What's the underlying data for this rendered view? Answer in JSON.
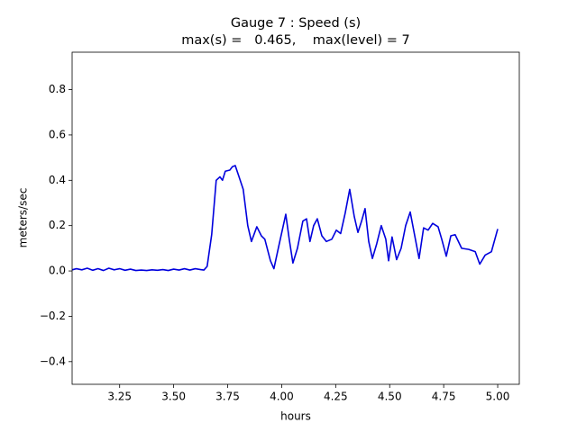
{
  "chart_data": {
    "type": "line",
    "title": "Gauge 7 : Speed (s)",
    "subtitle": "max(s) =   0.465,    max(level) = 7",
    "xlabel": "hours",
    "ylabel": "meters/sec",
    "color": "#0000dd",
    "x": [
      3.03,
      3.05,
      3.075,
      3.1,
      3.125,
      3.15,
      3.175,
      3.2,
      3.225,
      3.25,
      3.275,
      3.3,
      3.325,
      3.35,
      3.375,
      3.4,
      3.425,
      3.45,
      3.475,
      3.5,
      3.525,
      3.55,
      3.575,
      3.6,
      3.625,
      3.64,
      3.655,
      3.676,
      3.697,
      3.714,
      3.726,
      3.739,
      3.76,
      3.772,
      3.785,
      3.801,
      3.822,
      3.843,
      3.86,
      3.885,
      3.906,
      3.922,
      3.948,
      3.964,
      3.989,
      4.019,
      4.035,
      4.052,
      4.073,
      4.098,
      4.115,
      4.131,
      4.148,
      4.165,
      4.186,
      4.207,
      4.232,
      4.253,
      4.273,
      4.294,
      4.315,
      4.336,
      4.353,
      4.37,
      4.386,
      4.403,
      4.42,
      4.44,
      4.461,
      4.482,
      4.495,
      4.511,
      4.532,
      4.553,
      4.574,
      4.595,
      4.616,
      4.636,
      4.657,
      4.678,
      4.699,
      4.724,
      4.741,
      4.762,
      4.783,
      4.803,
      4.833,
      4.866,
      4.896,
      4.917,
      4.942,
      4.971,
      5.0
    ],
    "values": [
      0.005,
      0.01,
      0.005,
      0.012,
      0.003,
      0.01,
      0.002,
      0.012,
      0.005,
      0.01,
      0.003,
      0.008,
      0.002,
      0.004,
      0.002,
      0.005,
      0.003,
      0.006,
      0.002,
      0.008,
      0.004,
      0.01,
      0.004,
      0.01,
      0.006,
      0.004,
      0.02,
      0.16,
      0.4,
      0.415,
      0.4,
      0.44,
      0.445,
      0.46,
      0.465,
      0.42,
      0.36,
      0.2,
      0.13,
      0.195,
      0.155,
      0.14,
      0.045,
      0.01,
      0.12,
      0.25,
      0.14,
      0.035,
      0.1,
      0.22,
      0.23,
      0.13,
      0.2,
      0.23,
      0.155,
      0.13,
      0.14,
      0.18,
      0.165,
      0.255,
      0.36,
      0.24,
      0.17,
      0.22,
      0.275,
      0.13,
      0.055,
      0.12,
      0.2,
      0.14,
      0.045,
      0.15,
      0.05,
      0.1,
      0.2,
      0.26,
      0.155,
      0.055,
      0.19,
      0.18,
      0.21,
      0.195,
      0.14,
      0.065,
      0.155,
      0.16,
      0.1,
      0.095,
      0.085,
      0.03,
      0.07,
      0.085,
      0.185
    ],
    "xlim": [
      3.03,
      5.1
    ],
    "xticks": [
      3.25,
      {
        "value": 3.5,
        "label": "3.50"
      },
      3.75,
      {
        "value": 4.0,
        "label": "4.00"
      },
      4.25,
      {
        "value": 4.5,
        "label": "4.50"
      },
      4.75,
      {
        "value": 5.0,
        "label": "5.00"
      }
    ],
    "ylim": [
      -0.5,
      0.965
    ],
    "yticks": [
      {
        "value": -0.4,
        "label": "−0.4"
      },
      {
        "value": -0.2,
        "label": "−0.2"
      },
      {
        "value": 0,
        "label": "0.0"
      },
      0.2,
      0.4,
      0.6,
      0.8
    ]
  }
}
